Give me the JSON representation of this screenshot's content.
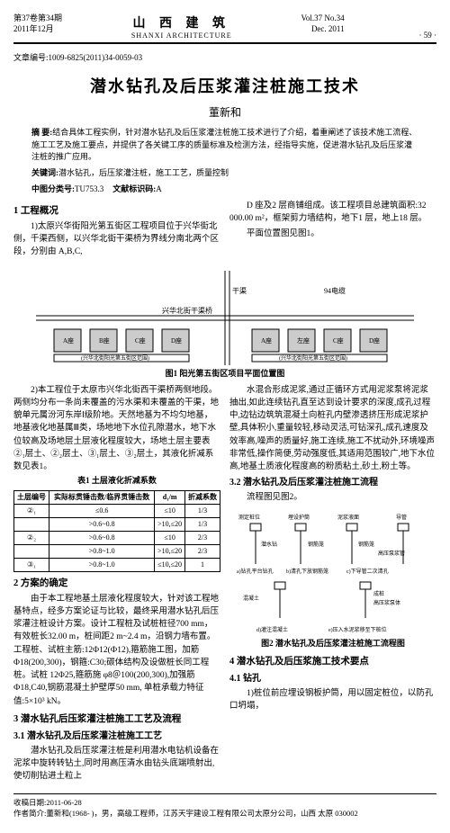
{
  "header": {
    "vol_cn": "第37卷第34期",
    "date_cn": "2011年12月",
    "journal_cn": "山 西 建 筑",
    "journal_en": "SHANXI ARCHITECTURE",
    "vol_en": "Vol.37 No.34",
    "date_en": "Dec. 2011",
    "page": "· 59 ·"
  },
  "article_id": "文章编号:1009-6825(2011)34-0059-03",
  "title": "潜水钻孔及后压浆灌注桩施工技术",
  "author": "董新和",
  "abstract_label": "摘 要:",
  "abstract": "结合具体工程实例，针对潜水钻孔及后压浆灌注桩施工技术进行了介绍，着重阐述了该技术施工流程、施工工艺及施工要点，并提供了各关键工序的质量标准及检测方法，经指导实施，促进潜水钻孔及后压浆灌注桩的推广应用。",
  "keywords_label": "关键词:",
  "keywords": "潜水钻孔，后压浆灌注桩，施工工艺，质量控制",
  "class_label": "中图分类号:",
  "class_no": "TU753.3",
  "doc_code_label": "文献标识码:",
  "doc_code": "A",
  "sec1": {
    "head": "1 工程概况",
    "p1": "1)太原兴华街阳光第五街区工程项目位于兴华街北侧，千渠西侧，以兴华北街干渠桥为界线分南北两个区段，分别由 A,B,C,",
    "p2": "D 座及2 层商铺组成。该工程项目总建筑面积:32 000.00 m²，框架剪力墙结构，地下1 层，地上18 层。",
    "p3": "平面位置图见图1。"
  },
  "fig1_caption": "图1 阳光第五街区项目平面位置图",
  "sec1b": {
    "p1": "2)本工程位于太原市兴华北街西干渠桥两侧地段。两侧均分布一条尚未覆盖的污水渠和未覆盖的干渠，地貌单元属汾河东岸Ⅰ级阶地。天然地基为不均匀地基，地基液化地基属Ⅲ类，场地地下水位孔隙潜水，地下水位较高及场地层土层液化程度较大，场地土层主要表②₁层土、②₂层土、③₁层土、③₂层土，其液化折减系数见表1。"
  },
  "table1": {
    "caption": "表1 土层液化折减系数",
    "headers": [
      "土层编号",
      "实际标贯锤击数/临界贯锤击数",
      "d₁/m",
      "折减系数"
    ],
    "rows": [
      [
        "②₁",
        "≤0.6",
        "≤10",
        "1/3"
      ],
      [
        "",
        ">0.6~0.8",
        ">10,≤20",
        "1/3"
      ],
      [
        "②₂",
        ">0.6~0.8",
        "≤10",
        "2/3"
      ],
      [
        "",
        ">0.8~1.0",
        ">10,≤20",
        "2/3"
      ],
      [
        "③₁",
        ">0.8~1.0",
        "≤10,≤20",
        "1"
      ]
    ]
  },
  "sec2": {
    "head": "2 方案的确定",
    "p1": "由于本工程地基土层液化程度较大，针对该工程地基特点，经多方案论证与比较，最终采用潜水钻孔后压浆灌注桩设计方案。设计工程桩及试桩桩径700 mm，有效桩长32.00 m，桩间距2 m~2.4 m，沿钢力墙布置。工程桩、试桩主筋:12Φ12(Ф12),箍筋施工图，加筋Φ18(200,300)，钢箍:C30;碳体结构及设做桩长同工程桩。试桩 12Φ25,箍筋施 φ8＠100(200,300),加强筋Ф18,C40,钢筋混凝土护壁厚50 mm, 单桩承载力特征值:5×10³ kN。"
  },
  "sec3": {
    "head": "3 潜水钻孔后压浆灌注桩施工工艺及流程",
    "sub1": "3.1 潜水钻孔及后压浆灌注桩施工工艺",
    "p1": "潜水钻孔及后压浆灌注桩是利用潜水电钻机设备在泥浆中旋转转钻土,同时用高压清水由钻头底端喷射出,使切削钻进土粒上",
    "p2": "水混合形成泥浆,通过正循环方式用泥浆泵将泥浆抽出,如此连续钻孔直至达到设计要求的深度,成孔过程中,边钻边筑筑混凝土向桩孔内壁渗透挤压形成泥浆护壁,具体积小,重量较轻,移动灵活,可钻深孔,成孔速度及效率高,噪声的质量好,施工连续,施工不扰动外,环境噪声非常低,操作简便,劳动强度低,其适用范围较广,地下水位高,地基土质液化程度高的粉质粘土,砂土,粉土等。",
    "sub2": "3.2 潜水钻孔及后压浆灌注桩施工流程",
    "p3": "流程图见图2。"
  },
  "fig2": {
    "caption": "图2 潜水钻孔及后压浆灌注桩施工流程图",
    "labels": [
      "测定桩位",
      "埋设护筒",
      "测泥浆液面",
      "导管",
      "钢筋笼",
      "潜水钻",
      "钢筋笼",
      "高压泵浆管",
      "a)钻孔平台钻孔",
      "b)清孔下放钢筋笼",
      "c)下导管二次清孔",
      "混凝土",
      "成桩",
      "高压浆泵体",
      "d)灌注混凝土",
      "e)压入水泥浆移至下桩位"
    ]
  },
  "sec4": {
    "head": "4 潜水钻孔及后压浆施工技术要点",
    "sub1": "4.1 钻孔",
    "p1": "1)桩位前应埋设钢板护筒，用以固定桩位，以防孔口坍塌，"
  },
  "footer": {
    "recv": "收稿日期:2011-06-28",
    "bio": "作者简介:董新和(1968- )，男，高级工程师，江苏天宇建设工程有限公司太原分公司，山西 太原 030002"
  }
}
